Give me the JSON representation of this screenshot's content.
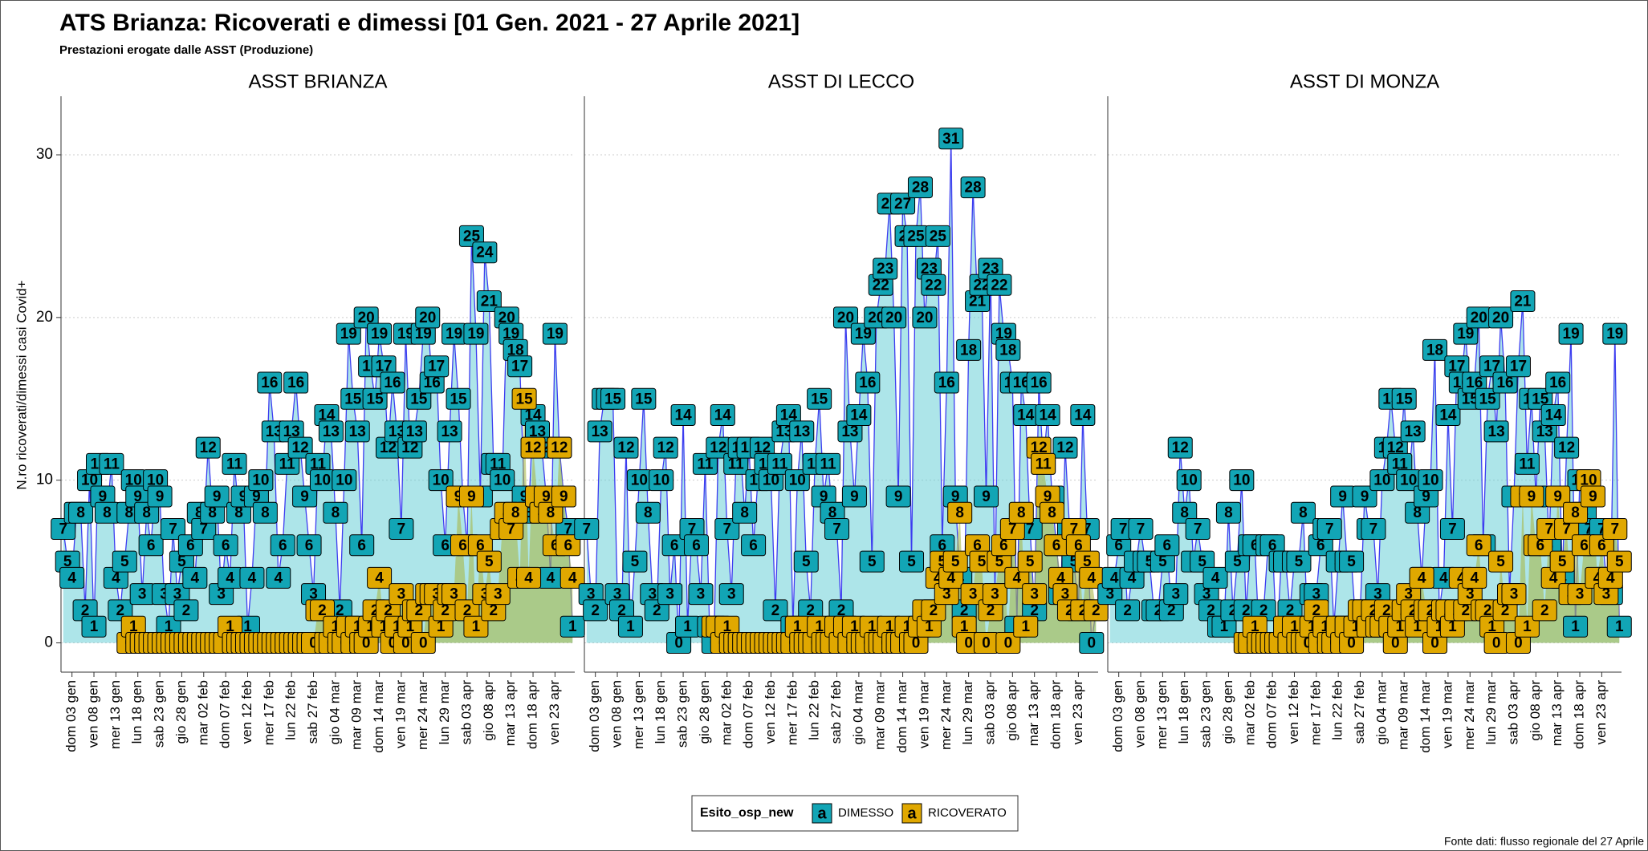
{
  "header": {
    "title": "ATS Brianza: Ricoverati e dimessi [01 Gen. 2021 - 27 Aprile 2021]",
    "subtitle": "Prestazioni erogate dalle ASST (Produzione)"
  },
  "legend": {
    "title": "Esito_osp_new",
    "glyph": "a"
  },
  "source": "Fonte dati: flusso regionale del 27 Aprile",
  "chart_data": [
    {
      "type": "area",
      "title": "ASST BRIANZA",
      "y_label": "N.ro ricoverati/dimessi casi Covid+",
      "ylim": [
        -1.8,
        33.6
      ],
      "yticks": [
        0,
        10,
        20,
        30
      ],
      "grid": true,
      "categories": [
        null,
        null,
        "dom 03 gen",
        null,
        null,
        null,
        null,
        "ven 08 gen",
        null,
        null,
        null,
        null,
        "mer 13 gen",
        null,
        null,
        null,
        null,
        "lun 18 gen",
        null,
        null,
        null,
        null,
        "sab 23 gen",
        null,
        null,
        null,
        null,
        "gio 28 gen",
        null,
        null,
        null,
        null,
        "mar 02 feb",
        null,
        null,
        null,
        null,
        "dom 07 feb",
        null,
        null,
        null,
        null,
        "ven 12 feb",
        null,
        null,
        null,
        null,
        "mer 17 feb",
        null,
        null,
        null,
        null,
        "lun 22 feb",
        null,
        null,
        null,
        null,
        "sab 27 feb",
        null,
        null,
        null,
        null,
        "gio 04 mar",
        null,
        null,
        null,
        null,
        "mar 09 mar",
        null,
        null,
        null,
        null,
        "dom 14 mar",
        null,
        null,
        null,
        null,
        "ven 19 mar",
        null,
        null,
        null,
        null,
        "mer 24 mar",
        null,
        null,
        null,
        null,
        "lun 29 mar",
        null,
        null,
        null,
        null,
        "sab 03 apr",
        null,
        null,
        null,
        null,
        "gio 08 apr",
        null,
        null,
        null,
        null,
        "mar 13 apr",
        null,
        null,
        null,
        null,
        "dom 18 apr",
        null,
        null,
        null,
        null,
        "ven 23 apr",
        null,
        null,
        null,
        null
      ],
      "series": [
        {
          "name": "DIMESSO",
          "color": "#12a5b5",
          "line_color": "#3c3cf0",
          "values": [
            7,
            5,
            4,
            8,
            8,
            2,
            10,
            1,
            11,
            9,
            8,
            11,
            4,
            2,
            5,
            8,
            10,
            9,
            3,
            8,
            6,
            10,
            9,
            3,
            1,
            7,
            3,
            5,
            2,
            6,
            4,
            8,
            7,
            12,
            8,
            9,
            3,
            6,
            4,
            11,
            8,
            9,
            1,
            4,
            9,
            10,
            8,
            16,
            13,
            4,
            6,
            11,
            13,
            16,
            12,
            9,
            6,
            3,
            11,
            10,
            14,
            13,
            8,
            2,
            10,
            19,
            15,
            13,
            6,
            20,
            17,
            15,
            19,
            17,
            12,
            16,
            13,
            7,
            19,
            12,
            13,
            15,
            19,
            20,
            16,
            17,
            10,
            6,
            13,
            19,
            15,
            9,
            6,
            25,
            19,
            9,
            24,
            21,
            11,
            11,
            10,
            20,
            19,
            18,
            17,
            9,
            8,
            14,
            13,
            12,
            9,
            4,
            19,
            12,
            9,
            7,
            1
          ]
        },
        {
          "name": "RICOVERATO",
          "color": "#e0a800",
          "values": [
            null,
            null,
            null,
            null,
            null,
            null,
            null,
            null,
            null,
            null,
            null,
            null,
            null,
            null,
            null,
            0,
            1,
            0,
            0,
            0,
            0,
            0,
            0,
            0,
            0,
            0,
            0,
            0,
            0,
            0,
            0,
            0,
            0,
            0,
            0,
            0,
            0,
            0,
            1,
            0,
            0,
            0,
            0,
            0,
            0,
            0,
            0,
            0,
            0,
            0,
            0,
            0,
            0,
            0,
            0,
            0,
            0,
            0,
            2,
            2,
            0,
            0,
            1,
            0,
            0,
            1,
            0,
            1,
            0,
            0,
            1,
            2,
            4,
            1,
            2,
            0,
            1,
            3,
            0,
            1,
            2,
            2,
            0,
            3,
            3,
            3,
            1,
            2,
            3,
            3,
            9,
            6,
            2,
            9,
            1,
            6,
            3,
            5,
            2,
            3,
            7,
            8,
            7,
            8,
            4,
            15,
            4,
            12,
            9,
            8,
            9,
            8,
            6,
            12,
            9,
            6,
            4
          ]
        }
      ]
    },
    {
      "type": "area",
      "title": "ASST DI LECCO",
      "categories": [
        null,
        null,
        "dom 03 gen",
        null,
        null,
        null,
        null,
        "ven 08 gen",
        null,
        null,
        null,
        null,
        "mer 13 gen",
        null,
        null,
        null,
        null,
        "lun 18 gen",
        null,
        null,
        null,
        null,
        "sab 23 gen",
        null,
        null,
        null,
        null,
        "gio 28 gen",
        null,
        null,
        null,
        null,
        "mar 02 feb",
        null,
        null,
        null,
        null,
        "dom 07 feb",
        null,
        null,
        null,
        null,
        "ven 12 feb",
        null,
        null,
        null,
        null,
        "mer 17 feb",
        null,
        null,
        null,
        null,
        "lun 22 feb",
        null,
        null,
        null,
        null,
        "sab 27 feb",
        null,
        null,
        null,
        null,
        "gio 04 mar",
        null,
        null,
        null,
        null,
        "mar 09 mar",
        null,
        null,
        null,
        null,
        "dom 14 mar",
        null,
        null,
        null,
        null,
        "ven 19 mar",
        null,
        null,
        null,
        null,
        "mer 24 mar",
        null,
        null,
        null,
        null,
        "lun 29 mar",
        null,
        null,
        null,
        null,
        "sab 03 apr",
        null,
        null,
        null,
        null,
        "gio 08 apr",
        null,
        null,
        null,
        null,
        "mar 13 apr",
        null,
        null,
        null,
        null,
        "dom 18 apr",
        null,
        null,
        null,
        null,
        "ven 23 apr",
        null,
        null,
        null,
        null
      ],
      "series": [
        {
          "name": "DIMESSO",
          "color": "#12a5b5",
          "line_color": "#3c3cf0",
          "values": [
            7,
            3,
            2,
            13,
            15,
            15,
            15,
            3,
            2,
            12,
            1,
            5,
            10,
            15,
            8,
            3,
            2,
            10,
            12,
            3,
            6,
            0,
            14,
            1,
            7,
            6,
            3,
            11,
            1,
            0,
            12,
            14,
            7,
            3,
            11,
            12,
            8,
            12,
            6,
            10,
            12,
            11,
            10,
            2,
            11,
            13,
            14,
            1,
            10,
            13,
            5,
            2,
            11,
            15,
            9,
            11,
            8,
            7,
            2,
            20,
            13,
            9,
            14,
            19,
            16,
            5,
            20,
            22,
            23,
            27,
            20,
            9,
            27,
            25,
            5,
            25,
            28,
            20,
            23,
            22,
            25,
            6,
            16,
            31,
            9,
            4,
            2,
            18,
            28,
            21,
            22,
            9,
            23,
            3,
            22,
            19,
            18,
            16,
            1,
            16,
            14,
            7,
            2,
            16,
            11,
            14,
            9,
            6,
            3,
            12,
            7,
            5,
            2,
            14,
            7,
            0,
            2
          ]
        },
        {
          "name": "RICOVERATO",
          "color": "#e0a800",
          "values": [
            null,
            null,
            null,
            null,
            null,
            null,
            null,
            null,
            null,
            null,
            null,
            null,
            null,
            null,
            null,
            null,
            null,
            null,
            null,
            null,
            null,
            null,
            null,
            null,
            null,
            null,
            null,
            null,
            null,
            1,
            1,
            0,
            1,
            0,
            0,
            0,
            0,
            0,
            0,
            0,
            0,
            0,
            0,
            0,
            0,
            0,
            0,
            0,
            1,
            0,
            0,
            0,
            0,
            1,
            0,
            0,
            0,
            1,
            0,
            1,
            0,
            1,
            0,
            0,
            0,
            1,
            0,
            0,
            0,
            1,
            0,
            0,
            0,
            1,
            0,
            0,
            1,
            2,
            1,
            2,
            4,
            5,
            3,
            4,
            5,
            8,
            1,
            0,
            3,
            6,
            5,
            0,
            2,
            3,
            5,
            6,
            0,
            7,
            4,
            8,
            1,
            5,
            3,
            12,
            11,
            9,
            8,
            6,
            4,
            3,
            2,
            7,
            6,
            2,
            5,
            4,
            2
          ]
        }
      ]
    },
    {
      "type": "area",
      "title": "ASST DI MONZA",
      "categories": [
        null,
        null,
        "dom 03 gen",
        null,
        null,
        null,
        null,
        "ven 08 gen",
        null,
        null,
        null,
        null,
        "mer 13 gen",
        null,
        null,
        null,
        null,
        "lun 18 gen",
        null,
        null,
        null,
        null,
        "sab 23 gen",
        null,
        null,
        null,
        null,
        "gio 28 gen",
        null,
        null,
        null,
        null,
        "mar 02 feb",
        null,
        null,
        null,
        null,
        "dom 07 feb",
        null,
        null,
        null,
        null,
        "ven 12 feb",
        null,
        null,
        null,
        null,
        "mer 17 feb",
        null,
        null,
        null,
        null,
        "lun 22 feb",
        null,
        null,
        null,
        null,
        "sab 27 feb",
        null,
        null,
        null,
        null,
        "gio 04 mar",
        null,
        null,
        null,
        null,
        "mar 09 mar",
        null,
        null,
        null,
        null,
        "dom 14 mar",
        null,
        null,
        null,
        null,
        "ven 19 mar",
        null,
        null,
        null,
        null,
        "mer 24 mar",
        null,
        null,
        null,
        null,
        "lun 29 mar",
        null,
        null,
        null,
        null,
        "sab 03 apr",
        null,
        null,
        null,
        null,
        "gio 08 apr",
        null,
        null,
        null,
        null,
        "mar 13 apr",
        null,
        null,
        null,
        null,
        "dom 18 apr",
        null,
        null,
        null,
        null,
        "ven 23 apr",
        null,
        null,
        null,
        null
      ],
      "series": [
        {
          "name": "DIMESSO",
          "color": "#12a5b5",
          "line_color": "#3c3cf0",
          "values": [
            3,
            4,
            6,
            7,
            2,
            4,
            5,
            7,
            5,
            5,
            2,
            2,
            5,
            6,
            2,
            3,
            12,
            8,
            10,
            5,
            7,
            5,
            3,
            2,
            4,
            1,
            1,
            8,
            2,
            5,
            10,
            2,
            6,
            6,
            0,
            2,
            6,
            6,
            0,
            5,
            5,
            2,
            5,
            5,
            8,
            1,
            3,
            3,
            6,
            7,
            7,
            1,
            5,
            9,
            5,
            5,
            1,
            2,
            9,
            7,
            7,
            3,
            10,
            12,
            15,
            12,
            11,
            15,
            10,
            13,
            8,
            4,
            9,
            10,
            18,
            2,
            4,
            14,
            7,
            17,
            16,
            19,
            15,
            16,
            20,
            6,
            15,
            17,
            13,
            20,
            16,
            3,
            9,
            17,
            21,
            11,
            15,
            9,
            15,
            13,
            6,
            14,
            16,
            4,
            12,
            19,
            1,
            10,
            8,
            7,
            6,
            6,
            7,
            4,
            3,
            19,
            1
          ]
        },
        {
          "name": "RICOVERATO",
          "color": "#e0a800",
          "values": [
            null,
            null,
            null,
            null,
            null,
            null,
            null,
            null,
            null,
            null,
            null,
            null,
            null,
            null,
            null,
            null,
            null,
            null,
            null,
            null,
            null,
            null,
            null,
            null,
            null,
            null,
            null,
            null,
            null,
            null,
            null,
            0,
            0,
            1,
            0,
            0,
            0,
            0,
            0,
            0,
            1,
            0,
            1,
            0,
            0,
            0,
            1,
            2,
            0,
            1,
            0,
            0,
            1,
            0,
            1,
            0,
            1,
            2,
            2,
            1,
            2,
            1,
            1,
            2,
            1,
            0,
            1,
            2,
            3,
            2,
            1,
            4,
            2,
            2,
            0,
            1,
            2,
            2,
            1,
            2,
            4,
            2,
            3,
            4,
            6,
            2,
            2,
            1,
            0,
            5,
            2,
            3,
            3,
            0,
            9,
            1,
            9,
            6,
            6,
            2,
            7,
            4,
            9,
            5,
            7,
            3,
            8,
            3,
            6,
            10,
            9,
            4,
            6,
            3,
            4,
            7,
            5
          ]
        }
      ]
    }
  ]
}
